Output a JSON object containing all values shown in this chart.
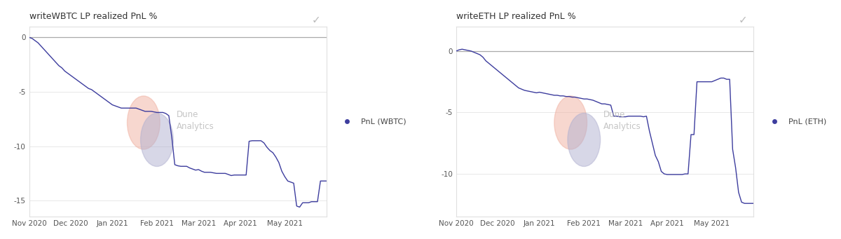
{
  "title_btc": "writeWBTC LP realized PnL %",
  "title_eth": "writeETH LP realized PnL %",
  "legend_btc": "PnL (WBTC)",
  "legend_eth": "PnL (ETH)",
  "line_color": "#3d3d9e",
  "background_color": "#ffffff",
  "panel_background": "#ffffff",
  "border_color": "#e0e0e0",
  "grid_color": "#e8e8e8",
  "zero_line_color": "#aaaaaa",
  "title_fontsize": 9,
  "tick_fontsize": 7.5,
  "legend_fontsize": 8,
  "ylim_btc": [
    -16.5,
    1.0
  ],
  "ylim_eth": [
    -13.5,
    2.0
  ],
  "yticks_btc": [
    0,
    -5,
    -10,
    -15
  ],
  "yticks_eth": [
    0,
    -5,
    -10
  ],
  "xtick_labels": [
    "Nov 2020",
    "Dec 2020",
    "Jan 2021",
    "Feb 2021",
    "Mar 2021",
    "Apr 2021",
    "May 2021"
  ],
  "xtick_pos": [
    0,
    14,
    28,
    43,
    57,
    71,
    86
  ],
  "btc_x": [
    0,
    1,
    2,
    3,
    4,
    5,
    6,
    7,
    8,
    9,
    10,
    11,
    12,
    13,
    14,
    15,
    16,
    17,
    18,
    19,
    20,
    21,
    22,
    23,
    24,
    25,
    26,
    27,
    28,
    29,
    30,
    31,
    32,
    33,
    34,
    35,
    36,
    37,
    38,
    39,
    40,
    41,
    42,
    43,
    44,
    45,
    46,
    47,
    48,
    49,
    50,
    51,
    52,
    53,
    54,
    55,
    56,
    57,
    58,
    59,
    60,
    61,
    62,
    63,
    64,
    65,
    66,
    67,
    68,
    69,
    70,
    71,
    72,
    73,
    74,
    75,
    76,
    77,
    78,
    79,
    80,
    81,
    82,
    83,
    84,
    85,
    86,
    87,
    88,
    89,
    90,
    91,
    92,
    93,
    94,
    95,
    96,
    97,
    98,
    99,
    100
  ],
  "btc_y": [
    0,
    -0.1,
    -0.3,
    -0.5,
    -0.8,
    -1.1,
    -1.4,
    -1.7,
    -2.0,
    -2.3,
    -2.6,
    -2.8,
    -3.1,
    -3.3,
    -3.5,
    -3.7,
    -3.9,
    -4.1,
    -4.3,
    -4.5,
    -4.7,
    -4.8,
    -5.0,
    -5.2,
    -5.4,
    -5.6,
    -5.8,
    -6.0,
    -6.2,
    -6.3,
    -6.4,
    -6.5,
    -6.5,
    -6.5,
    -6.5,
    -6.5,
    -6.5,
    -6.6,
    -6.7,
    -6.8,
    -6.8,
    -6.8,
    -6.85,
    -6.9,
    -6.9,
    -6.9,
    -7.0,
    -7.2,
    -9.2,
    -11.7,
    -11.8,
    -11.85,
    -11.85,
    -11.85,
    -12.0,
    -12.1,
    -12.2,
    -12.15,
    -12.3,
    -12.4,
    -12.4,
    -12.4,
    -12.45,
    -12.5,
    -12.5,
    -12.5,
    -12.5,
    -12.6,
    -12.7,
    -12.65,
    -12.65,
    -12.65,
    -12.65,
    -12.65,
    -9.55,
    -9.5,
    -9.5,
    -9.5,
    -9.5,
    -9.7,
    -10.1,
    -10.4,
    -10.6,
    -11.0,
    -11.5,
    -12.3,
    -12.8,
    -13.2,
    -13.3,
    -13.4,
    -15.5,
    -15.6,
    -15.2,
    -15.2,
    -15.2,
    -15.1,
    -15.1,
    -15.1,
    -13.2,
    -13.2,
    -13.2
  ],
  "eth_x": [
    0,
    1,
    2,
    3,
    4,
    5,
    6,
    7,
    8,
    9,
    10,
    11,
    12,
    13,
    14,
    15,
    16,
    17,
    18,
    19,
    20,
    21,
    22,
    23,
    24,
    25,
    26,
    27,
    28,
    29,
    30,
    31,
    32,
    33,
    34,
    35,
    36,
    37,
    38,
    39,
    40,
    41,
    42,
    43,
    44,
    45,
    46,
    47,
    48,
    49,
    50,
    51,
    52,
    53,
    54,
    55,
    56,
    57,
    58,
    59,
    60,
    61,
    62,
    63,
    64,
    65,
    66,
    67,
    68,
    69,
    70,
    71,
    72,
    73,
    74,
    75,
    76,
    77,
    78,
    79,
    80,
    81,
    82,
    83,
    84,
    85,
    86,
    87,
    88,
    89,
    90,
    91,
    92,
    93,
    94,
    95,
    96,
    97,
    98,
    99,
    100
  ],
  "eth_y": [
    0,
    0.1,
    0.15,
    0.1,
    0.05,
    0,
    -0.1,
    -0.2,
    -0.3,
    -0.5,
    -0.8,
    -1.0,
    -1.2,
    -1.4,
    -1.6,
    -1.8,
    -2.0,
    -2.2,
    -2.4,
    -2.6,
    -2.8,
    -3.0,
    -3.1,
    -3.2,
    -3.25,
    -3.3,
    -3.35,
    -3.4,
    -3.35,
    -3.4,
    -3.45,
    -3.5,
    -3.55,
    -3.6,
    -3.6,
    -3.65,
    -3.65,
    -3.7,
    -3.7,
    -3.75,
    -3.75,
    -3.8,
    -3.85,
    -3.9,
    -3.9,
    -3.95,
    -4.0,
    -4.1,
    -4.2,
    -4.3,
    -4.3,
    -4.35,
    -4.4,
    -5.3,
    -5.3,
    -5.35,
    -5.35,
    -5.35,
    -5.3,
    -5.3,
    -5.3,
    -5.3,
    -5.3,
    -5.35,
    -5.3,
    -6.5,
    -7.5,
    -8.5,
    -9.0,
    -9.8,
    -10.0,
    -10.05,
    -10.05,
    -10.05,
    -10.05,
    -10.05,
    -10.05,
    -10.0,
    -10.0,
    -6.8,
    -6.8,
    -2.5,
    -2.5,
    -2.5,
    -2.5,
    -2.5,
    -2.5,
    -2.4,
    -2.3,
    -2.2,
    -2.2,
    -2.3,
    -2.3,
    -8.0,
    -9.5,
    -11.5,
    -12.3,
    -12.4,
    -12.4,
    -12.4,
    -12.4
  ]
}
